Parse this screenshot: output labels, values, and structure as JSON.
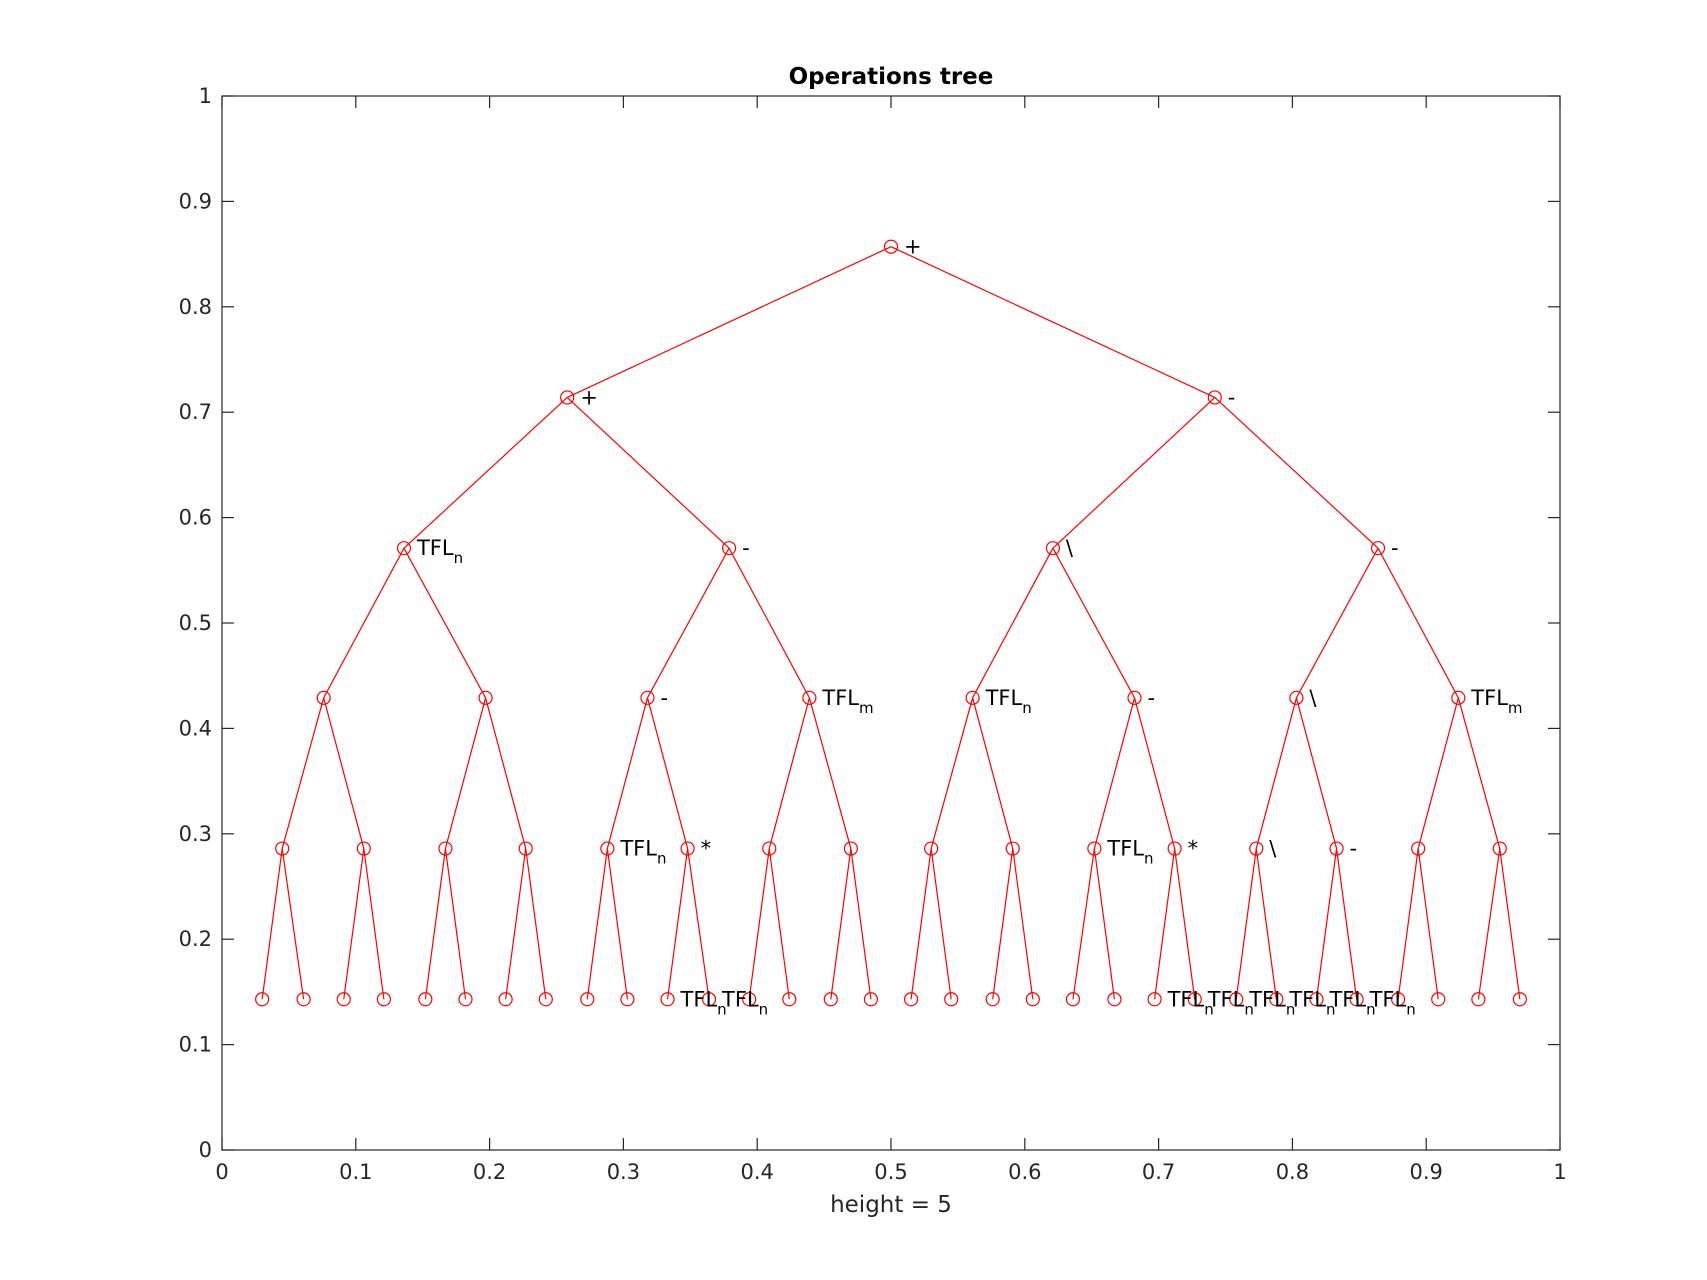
{
  "chart_data": {
    "type": "scatter",
    "title": "Operations tree",
    "xlabel": "height = 5",
    "ylabel": "",
    "xlim": [
      0,
      1
    ],
    "ylim": [
      0,
      1
    ],
    "xticks": [
      "0",
      "0.1",
      "0.2",
      "0.3",
      "0.4",
      "0.5",
      "0.6",
      "0.7",
      "0.8",
      "0.9",
      "1"
    ],
    "yticks": [
      "0",
      "0.1",
      "0.2",
      "0.3",
      "0.4",
      "0.5",
      "0.6",
      "0.7",
      "0.8",
      "0.9",
      "1"
    ],
    "grid": false,
    "legend": "none",
    "colors": {
      "tree": "#ff0000",
      "axes": "#262626",
      "labels": "#000000"
    },
    "levels_y": [
      0.857,
      0.714,
      0.571,
      0.429,
      0.286,
      0.143
    ],
    "nodes": [
      {
        "id": 1,
        "x": 0.5,
        "y": 0.857,
        "label": "+"
      },
      {
        "id": 2,
        "x": 0.258,
        "y": 0.714,
        "parent": 1,
        "label": "+"
      },
      {
        "id": 3,
        "x": 0.742,
        "y": 0.714,
        "parent": 1,
        "label": "-"
      },
      {
        "id": 4,
        "x": 0.136,
        "y": 0.571,
        "parent": 2,
        "label": "TFL",
        "sub": "n"
      },
      {
        "id": 5,
        "x": 0.379,
        "y": 0.571,
        "parent": 2,
        "label": "-"
      },
      {
        "id": 6,
        "x": 0.621,
        "y": 0.571,
        "parent": 3,
        "label": "\\"
      },
      {
        "id": 7,
        "x": 0.864,
        "y": 0.571,
        "parent": 3,
        "label": "-"
      },
      {
        "id": 8,
        "x": 0.076,
        "y": 0.429,
        "parent": 4
      },
      {
        "id": 9,
        "x": 0.197,
        "y": 0.429,
        "parent": 4
      },
      {
        "id": 10,
        "x": 0.318,
        "y": 0.429,
        "parent": 5,
        "label": "-"
      },
      {
        "id": 11,
        "x": 0.439,
        "y": 0.429,
        "parent": 5,
        "label": "TFL",
        "sub": "m"
      },
      {
        "id": 12,
        "x": 0.561,
        "y": 0.429,
        "parent": 6,
        "label": "TFL",
        "sub": "n"
      },
      {
        "id": 13,
        "x": 0.682,
        "y": 0.429,
        "parent": 6,
        "label": "-"
      },
      {
        "id": 14,
        "x": 0.803,
        "y": 0.429,
        "parent": 7,
        "label": "\\"
      },
      {
        "id": 15,
        "x": 0.924,
        "y": 0.429,
        "parent": 7,
        "label": "TFL",
        "sub": "m"
      },
      {
        "id": 16,
        "x": 0.045,
        "y": 0.286,
        "parent": 8
      },
      {
        "id": 17,
        "x": 0.106,
        "y": 0.286,
        "parent": 8
      },
      {
        "id": 18,
        "x": 0.167,
        "y": 0.286,
        "parent": 9
      },
      {
        "id": 19,
        "x": 0.227,
        "y": 0.286,
        "parent": 9
      },
      {
        "id": 20,
        "x": 0.288,
        "y": 0.286,
        "parent": 10,
        "label": "TFL",
        "sub": "n"
      },
      {
        "id": 21,
        "x": 0.348,
        "y": 0.286,
        "parent": 10,
        "label": "*"
      },
      {
        "id": 22,
        "x": 0.409,
        "y": 0.286,
        "parent": 11
      },
      {
        "id": 23,
        "x": 0.47,
        "y": 0.286,
        "parent": 11
      },
      {
        "id": 24,
        "x": 0.53,
        "y": 0.286,
        "parent": 12
      },
      {
        "id": 25,
        "x": 0.591,
        "y": 0.286,
        "parent": 12
      },
      {
        "id": 26,
        "x": 0.652,
        "y": 0.286,
        "parent": 13,
        "label": "TFL",
        "sub": "n"
      },
      {
        "id": 27,
        "x": 0.712,
        "y": 0.286,
        "parent": 13,
        "label": "*"
      },
      {
        "id": 28,
        "x": 0.773,
        "y": 0.286,
        "parent": 14,
        "label": "\\"
      },
      {
        "id": 29,
        "x": 0.833,
        "y": 0.286,
        "parent": 14,
        "label": "-"
      },
      {
        "id": 30,
        "x": 0.894,
        "y": 0.286,
        "parent": 15
      },
      {
        "id": 31,
        "x": 0.955,
        "y": 0.286,
        "parent": 15
      },
      {
        "id": 32,
        "x": 0.03,
        "y": 0.143,
        "parent": 16
      },
      {
        "id": 33,
        "x": 0.061,
        "y": 0.143,
        "parent": 16
      },
      {
        "id": 34,
        "x": 0.091,
        "y": 0.143,
        "parent": 17
      },
      {
        "id": 35,
        "x": 0.121,
        "y": 0.143,
        "parent": 17
      },
      {
        "id": 36,
        "x": 0.152,
        "y": 0.143,
        "parent": 18
      },
      {
        "id": 37,
        "x": 0.182,
        "y": 0.143,
        "parent": 18
      },
      {
        "id": 38,
        "x": 0.212,
        "y": 0.143,
        "parent": 19
      },
      {
        "id": 39,
        "x": 0.242,
        "y": 0.143,
        "parent": 19
      },
      {
        "id": 40,
        "x": 0.273,
        "y": 0.143,
        "parent": 20
      },
      {
        "id": 41,
        "x": 0.303,
        "y": 0.143,
        "parent": 20
      },
      {
        "id": 42,
        "x": 0.333,
        "y": 0.143,
        "parent": 21,
        "label": "TFL",
        "sub": "n"
      },
      {
        "id": 43,
        "x": 0.364,
        "y": 0.143,
        "parent": 21,
        "label": "TFL",
        "sub": "n"
      },
      {
        "id": 44,
        "x": 0.394,
        "y": 0.143,
        "parent": 22
      },
      {
        "id": 45,
        "x": 0.424,
        "y": 0.143,
        "parent": 22
      },
      {
        "id": 46,
        "x": 0.455,
        "y": 0.143,
        "parent": 23
      },
      {
        "id": 47,
        "x": 0.485,
        "y": 0.143,
        "parent": 23
      },
      {
        "id": 48,
        "x": 0.515,
        "y": 0.143,
        "parent": 24
      },
      {
        "id": 49,
        "x": 0.545,
        "y": 0.143,
        "parent": 24
      },
      {
        "id": 50,
        "x": 0.576,
        "y": 0.143,
        "parent": 25
      },
      {
        "id": 51,
        "x": 0.606,
        "y": 0.143,
        "parent": 25
      },
      {
        "id": 52,
        "x": 0.636,
        "y": 0.143,
        "parent": 26
      },
      {
        "id": 53,
        "x": 0.667,
        "y": 0.143,
        "parent": 26
      },
      {
        "id": 54,
        "x": 0.697,
        "y": 0.143,
        "parent": 27,
        "label": "TFL",
        "sub": "n"
      },
      {
        "id": 55,
        "x": 0.727,
        "y": 0.143,
        "parent": 27,
        "label": "TFL",
        "sub": "n"
      },
      {
        "id": 56,
        "x": 0.758,
        "y": 0.143,
        "parent": 28,
        "label": "TFL",
        "sub": "n"
      },
      {
        "id": 57,
        "x": 0.788,
        "y": 0.143,
        "parent": 28,
        "label": "TFL",
        "sub": "n"
      },
      {
        "id": 58,
        "x": 0.818,
        "y": 0.143,
        "parent": 29,
        "label": "TFL",
        "sub": "n"
      },
      {
        "id": 59,
        "x": 0.848,
        "y": 0.143,
        "parent": 29,
        "label": "TFL",
        "sub": "n"
      },
      {
        "id": 60,
        "x": 0.879,
        "y": 0.143,
        "parent": 30
      },
      {
        "id": 61,
        "x": 0.909,
        "y": 0.143,
        "parent": 30
      },
      {
        "id": 62,
        "x": 0.939,
        "y": 0.143,
        "parent": 31
      },
      {
        "id": 63,
        "x": 0.97,
        "y": 0.143,
        "parent": 31
      }
    ]
  }
}
